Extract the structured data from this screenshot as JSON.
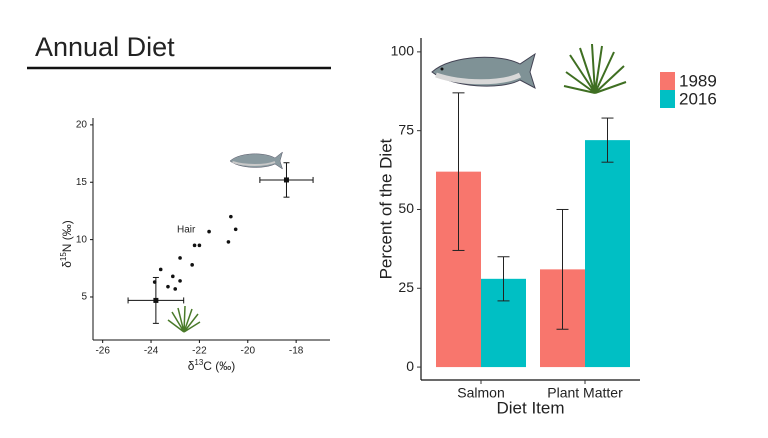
{
  "header": {
    "title": "Annual Diet"
  },
  "chart_data": [
    {
      "type": "scatter",
      "xlabel": {
        "prefix": "δ",
        "sup": "13",
        "rest": "C (‰)"
      },
      "ylabel": {
        "prefix": "δ",
        "sup": "15",
        "rest": "N (‰)"
      },
      "annotation": "Hair",
      "xlim": [
        -26.4,
        -16.6
      ],
      "xticks": [
        -26,
        -24,
        -22,
        -20,
        -18
      ],
      "ylim": [
        1.25,
        20.6
      ],
      "yticks": [
        5,
        10,
        15,
        20
      ],
      "x": [
        -23.85,
        -23.6,
        -23.3,
        -23.1,
        -23.0,
        -22.8,
        -22.8,
        -22.3,
        -22.2,
        -22.0,
        -21.6,
        -20.8,
        -20.7,
        -20.5
      ],
      "values": [
        6.3,
        7.4,
        5.9,
        6.8,
        5.7,
        6.4,
        8.4,
        7.8,
        9.5,
        9.5,
        10.7,
        9.8,
        12.0,
        10.9
      ],
      "color": "#111111",
      "sources": [
        {
          "x": -18.4,
          "y": 15.2,
          "xerr": 1.1,
          "yerr": 1.5
        },
        {
          "x": -23.8,
          "y": 4.7,
          "xerr": 1.15,
          "yerr": 2.0
        }
      ]
    },
    {
      "type": "bar",
      "xlabel": "Diet Item",
      "ylabel": "Percent of the Diet",
      "categories": [
        "Salmon",
        "Plant Matter"
      ],
      "ylim": [
        -4.1,
        104.4
      ],
      "yticks": [
        0,
        25,
        50,
        75,
        100
      ],
      "legend": "top-right",
      "series": [
        {
          "name": "1989",
          "color": "#f8766d",
          "values": [
            62,
            31
          ],
          "errors": [
            25,
            19
          ]
        },
        {
          "name": "2016",
          "color": "#00bfc4",
          "values": [
            28,
            72
          ],
          "errors": [
            7,
            7
          ]
        }
      ]
    }
  ]
}
